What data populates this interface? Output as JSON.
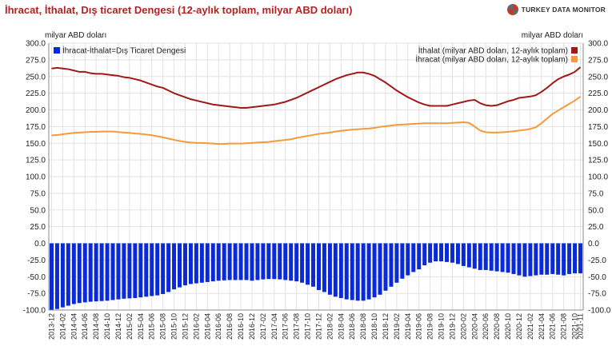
{
  "header": {
    "title": "İhracat, İthalat, Dış ticaret Dengesi (12-aylık toplam, milyar ABD doları)",
    "brand": "TURKEY DATA MONITOR",
    "brand_icon": "globe-logo-icon"
  },
  "chart_data": {
    "type": "bar+line",
    "ylabel_left": "milyar ABD doları",
    "ylabel_right": "milyar ABD doları",
    "ylim": [
      -100,
      300
    ],
    "yticks": [
      "300.0",
      "275.0",
      "250.0",
      "225.0",
      "200.0",
      "175.0",
      "150.0",
      "125.0",
      "100.0",
      "75.0",
      "50.0",
      "25.0",
      "0.0",
      "-25.0",
      "-50.0",
      "-75.0",
      "-100.0"
    ],
    "grid": true,
    "legend_left_position": "top-left",
    "legend_right_position": "top-right",
    "colors": {
      "balance": "#0a2ad8",
      "imports": "#a01818",
      "exports": "#f39a3a",
      "grid": "#e2e2e2"
    },
    "x": [
      "2013-12",
      "2014-01",
      "2014-02",
      "2014-03",
      "2014-04",
      "2014-05",
      "2014-06",
      "2014-07",
      "2014-08",
      "2014-09",
      "2014-10",
      "2014-11",
      "2014-12",
      "2015-01",
      "2015-02",
      "2015-03",
      "2015-04",
      "2015-05",
      "2015-06",
      "2015-07",
      "2015-08",
      "2015-09",
      "2015-10",
      "2015-11",
      "2015-12",
      "2016-01",
      "2016-02",
      "2016-03",
      "2016-04",
      "2016-05",
      "2016-06",
      "2016-07",
      "2016-08",
      "2016-09",
      "2016-10",
      "2016-11",
      "2016-12",
      "2017-01",
      "2017-02",
      "2017-03",
      "2017-04",
      "2017-05",
      "2017-06",
      "2017-07",
      "2017-08",
      "2017-09",
      "2017-10",
      "2017-11",
      "2017-12",
      "2018-01",
      "2018-02",
      "2018-03",
      "2018-04",
      "2018-05",
      "2018-06",
      "2018-07",
      "2018-08",
      "2018-09",
      "2018-10",
      "2018-11",
      "2018-12",
      "2019-01",
      "2019-02",
      "2019-03",
      "2019-04",
      "2019-05",
      "2019-06",
      "2019-07",
      "2019-08",
      "2019-09",
      "2019-10",
      "2019-11",
      "2019-12",
      "2020-01",
      "2020-02",
      "2020-03",
      "2020-04",
      "2020-05",
      "2020-06",
      "2020-07",
      "2020-08",
      "2020-09",
      "2020-10",
      "2020-11",
      "2020-12",
      "2021-01",
      "2021-02",
      "2021-03",
      "2021-04",
      "2021-05",
      "2021-06",
      "2021-07",
      "2021-08",
      "2021-09",
      "2021-10",
      "2021-11"
    ],
    "xticks": [
      "2013-12",
      "2014-02",
      "2014-04",
      "2014-06",
      "2014-08",
      "2014-10",
      "2014-12",
      "2015-02",
      "2015-04",
      "2015-06",
      "2015-08",
      "2015-10",
      "2015-12",
      "2016-02",
      "2016-04",
      "2016-06",
      "2016-08",
      "2016-10",
      "2016-12",
      "2017-02",
      "2017-04",
      "2017-06",
      "2017-08",
      "2017-10",
      "2017-12",
      "2018-02",
      "2018-04",
      "2018-06",
      "2018-08",
      "2018-10",
      "2018-12",
      "2019-02",
      "2019-04",
      "2019-06",
      "2019-08",
      "2019-10",
      "2019-12",
      "2020-02",
      "2020-04",
      "2020-06",
      "2020-08",
      "2020-10",
      "2020-12",
      "2021-02",
      "2021-04",
      "2021-06",
      "2021-08",
      "2021-10",
      "2021-11"
    ],
    "series": [
      {
        "name": "İhracat-İthalat=Dış Ticaret Dengesi",
        "kind": "bar",
        "values": [
          -99.9,
          -98.5,
          -96,
          -93.5,
          -91,
          -89.5,
          -88.5,
          -87.5,
          -87,
          -86.5,
          -86,
          -85,
          -84,
          -83,
          -82.5,
          -82,
          -81,
          -80,
          -79,
          -78,
          -76,
          -73,
          -69,
          -66,
          -63,
          -61,
          -60,
          -59,
          -58,
          -57,
          -56,
          -55.5,
          -55,
          -55,
          -55,
          -55,
          -56,
          -55,
          -54,
          -53.5,
          -53.5,
          -54,
          -55,
          -56,
          -57,
          -59,
          -62,
          -65,
          -70,
          -73,
          -77,
          -80,
          -82,
          -84,
          -85,
          -86,
          -86,
          -84,
          -81,
          -77,
          -71,
          -65,
          -59,
          -53,
          -48,
          -43,
          -39,
          -33,
          -29,
          -27,
          -27,
          -28,
          -29,
          -31,
          -34,
          -36,
          -38,
          -40,
          -40,
          -41,
          -42,
          -43,
          -44,
          -46,
          -48,
          -50,
          -49,
          -48,
          -47,
          -47,
          -46,
          -47,
          -48,
          -46,
          -45,
          -45
        ]
      },
      {
        "name": "İthalat (milyar ABD doları, 12-aylık toplam)",
        "kind": "line",
        "values": [
          262,
          263,
          262,
          261,
          259,
          257,
          257,
          255,
          254,
          254,
          253,
          252,
          251,
          249,
          248,
          246,
          244,
          241,
          238,
          235,
          233,
          229,
          225,
          222,
          219,
          216,
          214,
          212,
          210,
          208,
          207,
          206,
          205,
          204,
          203,
          203,
          204,
          205,
          206,
          207,
          208,
          210,
          212,
          215,
          218,
          222,
          226,
          230,
          234,
          238,
          242,
          246,
          249,
          252,
          254,
          256,
          256,
          254,
          251,
          246,
          241,
          235,
          229,
          224,
          219,
          215,
          211,
          208,
          206,
          206,
          206,
          206,
          208,
          210,
          212,
          214,
          215,
          210,
          207,
          206,
          207,
          210,
          213,
          215,
          218,
          219,
          220,
          222,
          227,
          233,
          240,
          246,
          250,
          253,
          257,
          264
        ]
      },
      {
        "name": "İhracat (milyar ABD doları, 12-aylık toplam)",
        "kind": "line",
        "values": [
          161.8,
          162.2,
          163.5,
          164.5,
          165.5,
          166,
          166.5,
          167,
          167,
          167.5,
          167.5,
          167.5,
          166.8,
          166,
          165.5,
          164.5,
          164,
          163,
          162,
          160.5,
          158.8,
          157,
          155,
          153.5,
          152,
          151,
          150.5,
          150.5,
          150,
          149.5,
          149,
          149,
          149.5,
          149.5,
          149.5,
          150,
          150.5,
          151,
          151.5,
          152,
          153,
          154,
          155,
          156,
          158,
          159.5,
          161,
          162.5,
          164,
          165,
          166,
          167.5,
          168.5,
          169.5,
          170.5,
          171,
          171.5,
          172,
          173,
          174.5,
          175.5,
          176.5,
          177.5,
          178,
          178.5,
          179,
          179.5,
          180,
          180,
          180,
          180,
          180,
          180.5,
          181,
          181.5,
          180.5,
          175,
          169,
          166.5,
          166,
          166,
          166.5,
          167,
          168,
          169,
          170,
          171.5,
          174,
          180,
          187,
          194,
          199,
          204,
          209,
          214,
          220
        ]
      }
    ]
  }
}
